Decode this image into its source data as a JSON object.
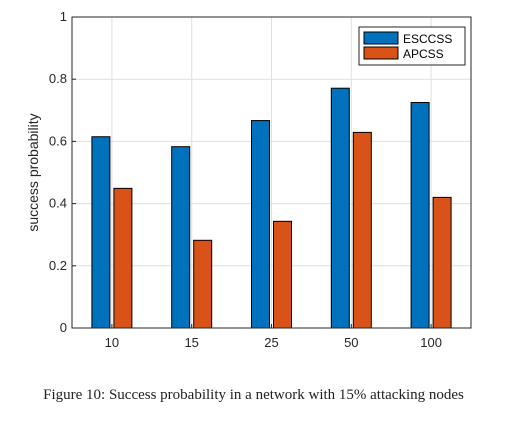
{
  "chart_data": {
    "type": "bar",
    "categories": [
      "10",
      "15",
      "25",
      "50",
      "100"
    ],
    "series": [
      {
        "name": "ESCCSS",
        "values": [
          0.615,
          0.583,
          0.667,
          0.771,
          0.725
        ],
        "color": "#0072BD"
      },
      {
        "name": "APCSS",
        "values": [
          0.449,
          0.282,
          0.343,
          0.629,
          0.42
        ],
        "color": "#D95319"
      }
    ],
    "title": "",
    "xlabel": "",
    "ylabel": "success probability",
    "ylim": [
      0,
      1
    ],
    "yticks": [
      "0",
      "0.2",
      "0.4",
      "0.6",
      "0.8",
      "1"
    ],
    "grid": true,
    "legend_position": "top-right"
  },
  "caption": "Figure 10: Success probability in a network with 15% attacking nodes"
}
